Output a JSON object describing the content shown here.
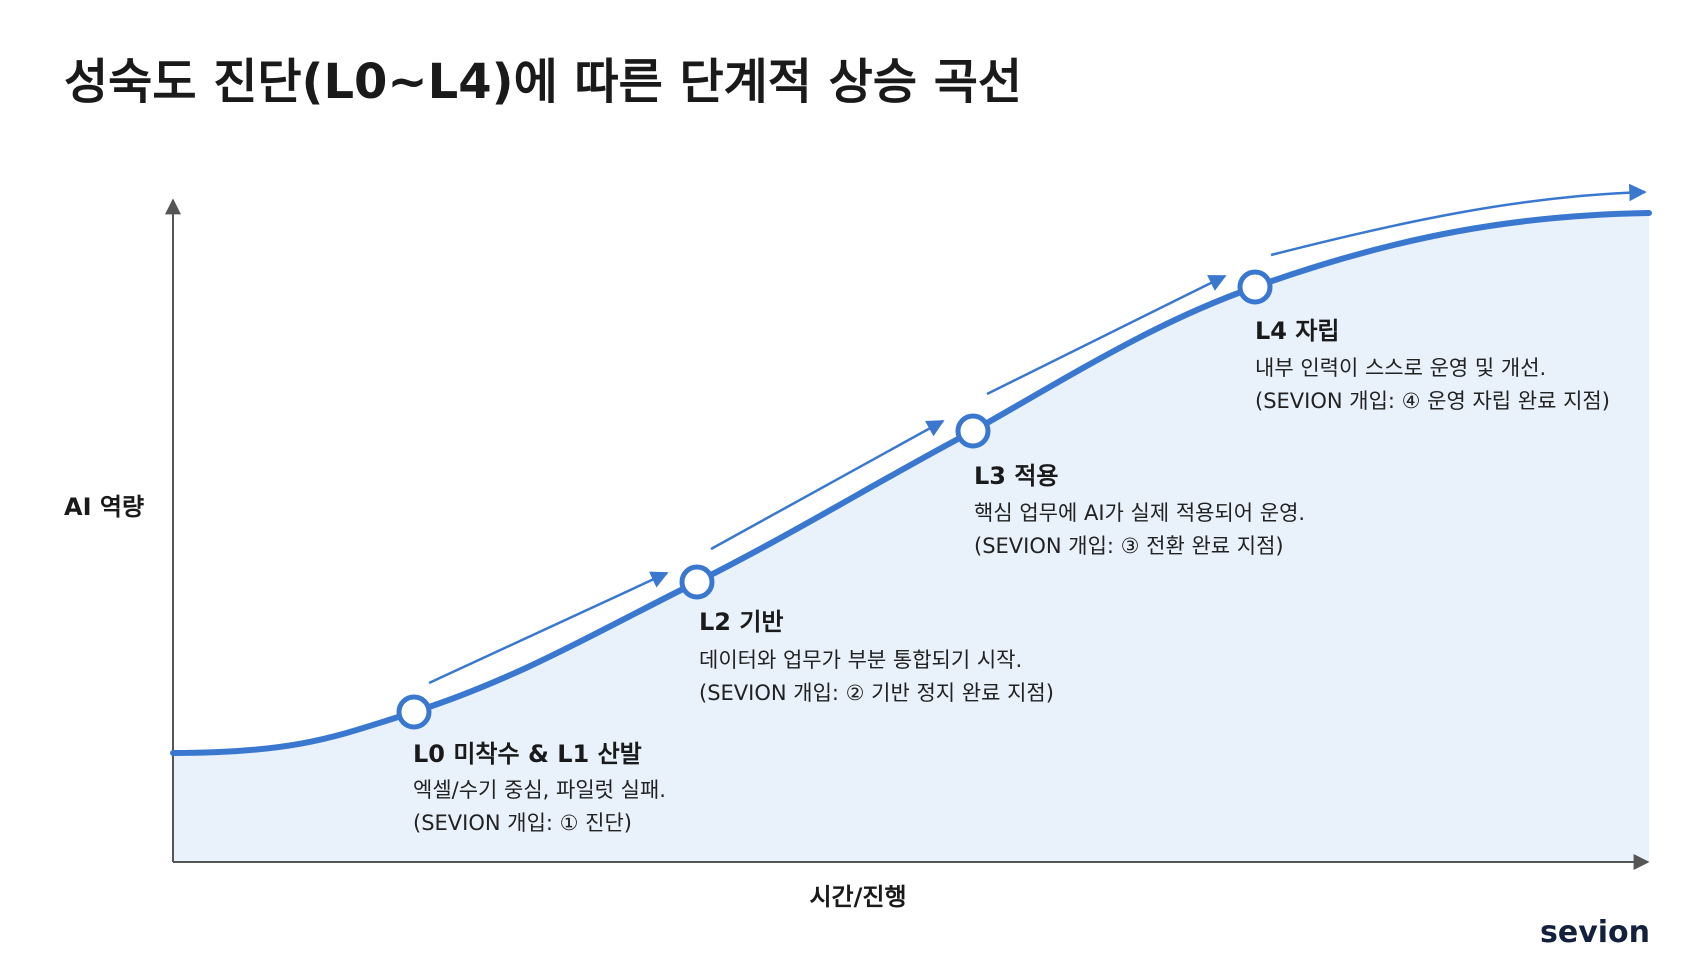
{
  "header": {
    "title": "성숙도 진단(L0~L4)에 따른 단계적 상승 곡선"
  },
  "axes": {
    "y_label": "AI 역량",
    "x_label": "시간/진행"
  },
  "stages": [
    {
      "title": "L0 미착수 & L1 산발",
      "description": "엑셀/수기 중심, 파일럿 실패.",
      "note": "(SEVION 개입: ① 진단)"
    },
    {
      "title": "L2 기반",
      "description": "데이터와 업무가 부분 통합되기 시작.",
      "note": "(SEVION 개입: ② 기반 정지 완료 지점)"
    },
    {
      "title": "L3 적용",
      "description": "핵심 업무에 AI가 실제 적용되어 운영.",
      "note": "(SEVION 개입: ③ 전환 완료 지점)"
    },
    {
      "title": "L4 자립",
      "description": "내부 인력이 스스로 운영 및 개선.",
      "note": "(SEVION 개입: ④ 운영 자립 완료 지점)"
    }
  ],
  "logo": "sevion"
}
